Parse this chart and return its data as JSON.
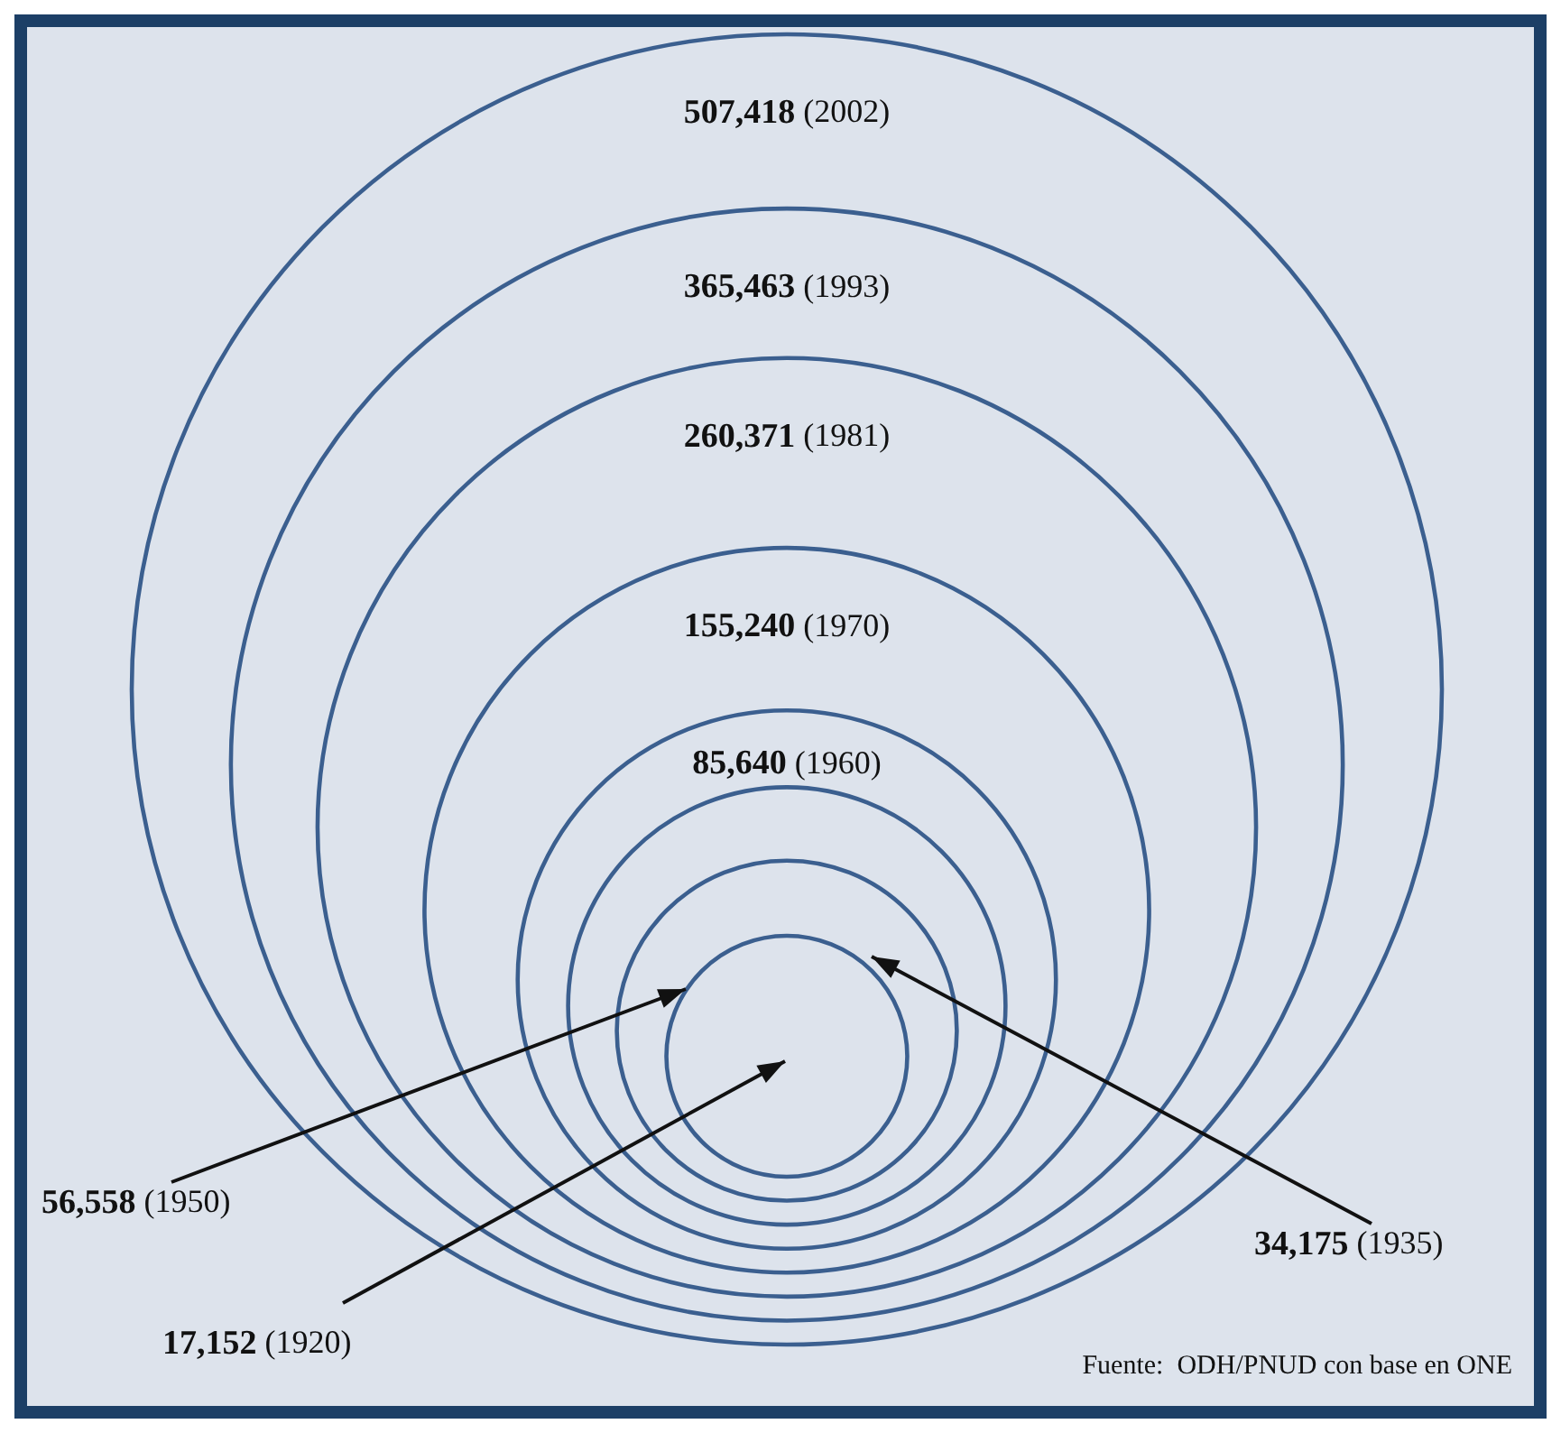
{
  "chart_data": {
    "type": "other",
    "categories": [
      "(1920)",
      "(1935)",
      "(1950)",
      "(1960)",
      "(1970)",
      "(1981)",
      "(1993)",
      "(2002)"
    ],
    "values": [
      17152,
      34175,
      56558,
      85640,
      155240,
      260371,
      365463,
      507418
    ],
    "value_labels": [
      "17,152",
      "34,175",
      "56,558",
      "85,640",
      "155,240",
      "260,371",
      "365,463",
      "507,418"
    ],
    "color": "#3b5f8f",
    "annotations": [
      "Fuente:  ODH/PNUD con base en ONE"
    ]
  }
}
